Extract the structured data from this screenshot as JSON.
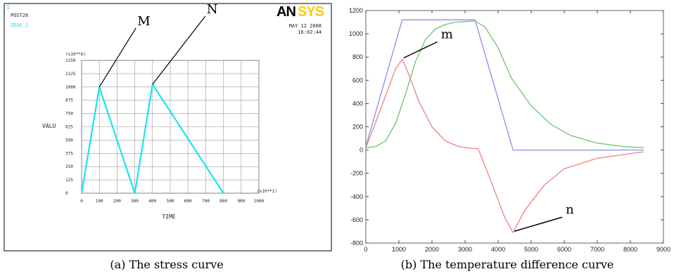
{
  "captions": {
    "a": "(a) The stress curve",
    "b": "(b) The temperature difference curve"
  },
  "ansys_panel": {
    "top_left_lines": [
      "POST26",
      "ZEGU_2"
    ],
    "corner_mark": "1",
    "logo": "ANSYS",
    "date": "MAY 12 2008",
    "time": "16:02:44"
  },
  "colors": {
    "stress_line": "#22e0f0",
    "ansys_accent": "#ffcc00",
    "ansys_tag": "#3ac8f0",
    "blue_series": "#8c8cf0",
    "green_series": "#6cc46c",
    "red_series": "#f08080"
  },
  "chart_data": [
    {
      "type": "line",
      "x_multiplier_label": "(x10**1)",
      "y_multiplier_label": "(x10**6)",
      "xlabel": "TIME",
      "ylabel": "VALU",
      "xlim": [
        0,
        1000
      ],
      "ylim": [
        0,
        1250
      ],
      "x_ticks": [
        0,
        100,
        200,
        300,
        400,
        500,
        600,
        700,
        800,
        900,
        1000
      ],
      "y_ticks": [
        0,
        125,
        250,
        375,
        500,
        625,
        750,
        875,
        1000,
        1125,
        1250
      ],
      "grid": true,
      "series": [
        {
          "x": [
            0,
            100,
            300,
            400,
            800
          ],
          "y": [
            0,
            1000,
            0,
            1025,
            0
          ]
        }
      ],
      "annotations": [
        {
          "label": "M",
          "x": 100,
          "y": 1000
        },
        {
          "label": "N",
          "x": 400,
          "y": 1025
        }
      ]
    },
    {
      "type": "line",
      "xlim": [
        0,
        9000
      ],
      "ylim": [
        -800,
        1200
      ],
      "x_ticks": [
        0,
        1000,
        2000,
        3000,
        4000,
        5000,
        6000,
        7000,
        8000,
        9000
      ],
      "y_ticks": [
        -800,
        -600,
        -400,
        -200,
        0,
        200,
        400,
        600,
        800,
        1000,
        1200
      ],
      "grid": false,
      "series": [
        {
          "x": [
            0,
            1100,
            3300,
            4450,
            8400
          ],
          "y": [
            30,
            1120,
            1120,
            0,
            0
          ]
        },
        {
          "x": [
            0,
            300,
            600,
            900,
            1200,
            1500,
            1800,
            2100,
            2400,
            2700,
            3000,
            3300,
            3600,
            4000,
            4400,
            5000,
            5600,
            6200,
            7000,
            7800,
            8400
          ],
          "y": [
            20,
            30,
            80,
            230,
            480,
            760,
            950,
            1040,
            1080,
            1100,
            1105,
            1110,
            1060,
            880,
            620,
            380,
            220,
            125,
            60,
            30,
            20
          ]
        },
        {
          "x": [
            0,
            300,
            600,
            900,
            1100,
            1300,
            1600,
            2000,
            2400,
            2800,
            3200,
            3400,
            3800,
            4200,
            4450,
            4800,
            5400,
            6000,
            7000,
            8400
          ],
          "y": [
            20,
            240,
            470,
            700,
            780,
            650,
            420,
            200,
            80,
            30,
            15,
            10,
            -280,
            -580,
            -710,
            -520,
            -300,
            -160,
            -70,
            -15
          ]
        }
      ],
      "annotations": [
        {
          "label": "m",
          "x": 1100,
          "y": 780
        },
        {
          "label": "n",
          "x": 4450,
          "y": -710
        }
      ]
    }
  ]
}
